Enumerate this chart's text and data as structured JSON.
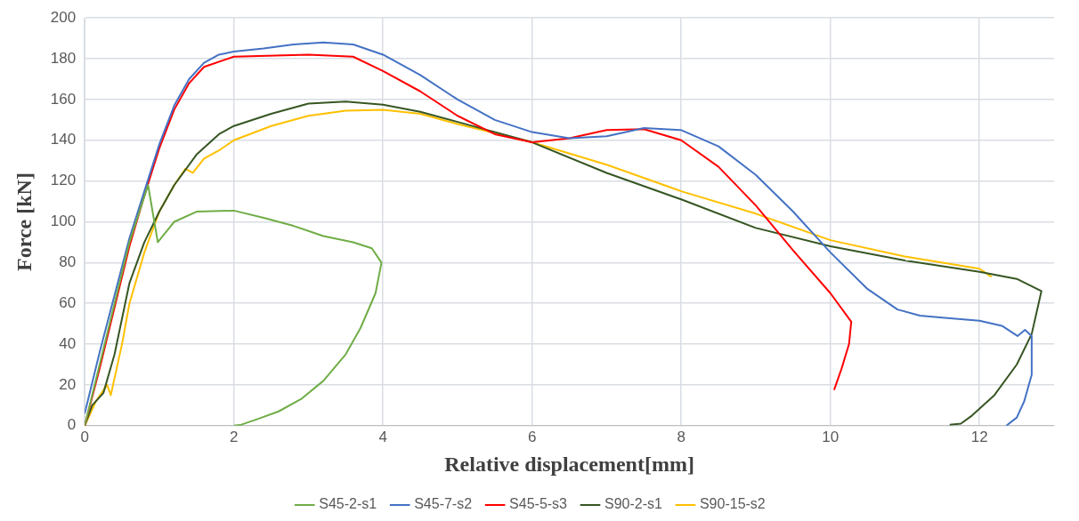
{
  "chart_data": {
    "type": "line",
    "xlabel": "Relative displacement[mm]",
    "ylabel": "Force [kN]",
    "xlim": [
      0,
      13
    ],
    "xticks": [
      0,
      2,
      4,
      6,
      8,
      10,
      12
    ],
    "ylim": [
      0,
      200
    ],
    "yticks": [
      0,
      20,
      40,
      60,
      80,
      100,
      120,
      140,
      160,
      180,
      200
    ],
    "grid": true,
    "legend": "bottom",
    "marker": "none",
    "line_style": "solid",
    "series": [
      {
        "name": "S45-2-s1",
        "color": "#70ad47",
        "x": [
          0,
          0.2,
          0.4,
          0.6,
          0.85,
          0.98,
          1.2,
          1.5,
          2,
          2.4,
          2.8,
          3.2,
          3.6,
          3.85,
          3.98,
          3.9,
          3.7,
          3.5,
          3.2,
          2.9,
          2.6,
          2.3,
          2.1,
          2
        ],
        "values": [
          0,
          30,
          60,
          90,
          118,
          90,
          100,
          105,
          105.5,
          102,
          98,
          93,
          90,
          87,
          80,
          65,
          48,
          35,
          22,
          13,
          7,
          3,
          0.5,
          0
        ]
      },
      {
        "name": "S45-7-s2",
        "color": "#4472c4",
        "x": [
          0,
          0.2,
          0.4,
          0.6,
          0.8,
          1,
          1.2,
          1.4,
          1.6,
          1.8,
          2,
          2.4,
          2.8,
          3.2,
          3.6,
          4,
          4.5,
          5,
          5.5,
          6,
          6.5,
          7,
          7.5,
          8,
          8.5,
          9,
          9.5,
          10,
          10.5,
          10.9,
          11.2,
          11.5,
          12,
          12.3,
          12.51,
          12.61,
          12.7,
          12.7,
          12.6,
          12.5,
          12.36
        ],
        "values": [
          6,
          36,
          64,
          92,
          115,
          138,
          157,
          170,
          178,
          182,
          183.5,
          185,
          187,
          188,
          187,
          182,
          172,
          160,
          150,
          144,
          141,
          142,
          146,
          145,
          137,
          123,
          105,
          85,
          67,
          57,
          54,
          53,
          51.5,
          49,
          44,
          47,
          44,
          25,
          12,
          4,
          0
        ]
      },
      {
        "name": "S45-5-s3",
        "color": "#ff0000",
        "x": [
          0,
          0.2,
          0.4,
          0.6,
          0.8,
          1,
          1.2,
          1.4,
          1.6,
          2,
          3,
          3.6,
          4,
          4.5,
          5,
          5.5,
          6,
          6.5,
          7,
          7.5,
          8,
          8.5,
          9,
          9.5,
          10,
          10.28,
          10.25,
          10.15,
          10.05
        ],
        "values": [
          0,
          28,
          58,
          88,
          113,
          136,
          155,
          168,
          176,
          181,
          182,
          181,
          174,
          164,
          152,
          143,
          139,
          141,
          145,
          145.5,
          140,
          127,
          108,
          86,
          65,
          51,
          40,
          28,
          17.5
        ]
      },
      {
        "name": "S90-2-s1",
        "color": "#375623",
        "x": [
          0,
          0.1,
          0.25,
          0.4,
          0.6,
          0.8,
          1,
          1.2,
          1.5,
          1.8,
          2,
          2.5,
          3,
          3.5,
          4,
          4.5,
          5,
          6,
          7,
          8,
          9,
          10,
          11,
          12,
          12.5,
          12.83,
          12.7,
          12.5,
          12.2,
          11.9,
          11.75,
          11.6
        ],
        "values": [
          0,
          10,
          16,
          35,
          70,
          90,
          105,
          118,
          133,
          143,
          147,
          153,
          158,
          159,
          157.5,
          154,
          149,
          139,
          124,
          111,
          97,
          88,
          81,
          75.5,
          72,
          66,
          45,
          30,
          15,
          5,
          1,
          0.5
        ]
      },
      {
        "name": "S90-15-s2",
        "color": "#ffc000",
        "x": [
          0,
          0.15,
          0.3,
          0.35,
          0.5,
          0.6,
          0.8,
          1,
          1.2,
          1.35,
          1.45,
          1.6,
          1.8,
          2,
          2.5,
          3,
          3.5,
          4,
          4.5,
          5,
          6,
          7,
          8,
          9,
          10,
          11,
          12,
          12.16
        ],
        "values": [
          0,
          12,
          20,
          15,
          40,
          60,
          85,
          105,
          118,
          126,
          124,
          131,
          135,
          140,
          147,
          152,
          154.5,
          155,
          153,
          148,
          139,
          128,
          115,
          104,
          91,
          83,
          77,
          73
        ]
      }
    ]
  }
}
